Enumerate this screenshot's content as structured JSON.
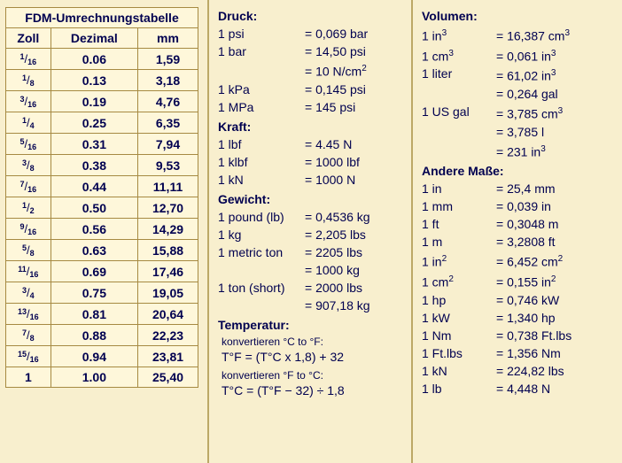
{
  "table": {
    "title": "FDM-Umrechnungstabelle",
    "headers": [
      "Zoll",
      "Dezimal",
      "mm"
    ],
    "rows": [
      {
        "num": "1",
        "den": "16",
        "dec": "0.06",
        "mm": "1,59"
      },
      {
        "num": "1",
        "den": "8",
        "dec": "0.13",
        "mm": "3,18"
      },
      {
        "num": "3",
        "den": "16",
        "dec": "0.19",
        "mm": "4,76"
      },
      {
        "num": "1",
        "den": "4",
        "dec": "0.25",
        "mm": "6,35"
      },
      {
        "num": "5",
        "den": "16",
        "dec": "0.31",
        "mm": "7,94"
      },
      {
        "num": "3",
        "den": "8",
        "dec": "0.38",
        "mm": "9,53"
      },
      {
        "num": "7",
        "den": "16",
        "dec": "0.44",
        "mm": "11,11"
      },
      {
        "num": "1",
        "den": "2",
        "dec": "0.50",
        "mm": "12,70"
      },
      {
        "num": "9",
        "den": "16",
        "dec": "0.56",
        "mm": "14,29"
      },
      {
        "num": "5",
        "den": "8",
        "dec": "0.63",
        "mm": "15,88"
      },
      {
        "num": "11",
        "den": "16",
        "dec": "0.69",
        "mm": "17,46"
      },
      {
        "num": "3",
        "den": "4",
        "dec": "0.75",
        "mm": "19,05"
      },
      {
        "num": "13",
        "den": "16",
        "dec": "0.81",
        "mm": "20,64"
      },
      {
        "num": "7",
        "den": "8",
        "dec": "0.88",
        "mm": "22,23"
      },
      {
        "num": "15",
        "den": "16",
        "dec": "0.94",
        "mm": "23,81"
      },
      {
        "whole": "1",
        "dec": "1.00",
        "mm": "25,40"
      }
    ]
  },
  "col2": {
    "druck": {
      "title": "Druck:",
      "rows": [
        {
          "l": "1 psi",
          "r": "= 0,069 bar"
        },
        {
          "l": "1 bar",
          "r": "= 14,50 psi"
        },
        {
          "l": "",
          "r": "= 10 N/cm²"
        },
        {
          "l": "1 kPa",
          "r": "= 0,145 psi"
        },
        {
          "l": "1 MPa",
          "r": "= 145 psi"
        }
      ]
    },
    "kraft": {
      "title": "Kraft:",
      "rows": [
        {
          "l": "1 lbf",
          "r": "= 4.45 N"
        },
        {
          "l": "1 klbf",
          "r": "= 1000 lbf"
        },
        {
          "l": "1 kN",
          "r": "= 1000 N"
        }
      ]
    },
    "gewicht": {
      "title": "Gewicht:",
      "rows": [
        {
          "l": "1 pound (lb)",
          "r": "= 0,4536 kg"
        },
        {
          "l": "1 kg",
          "r": "= 2,205 lbs"
        },
        {
          "l": "1 metric ton",
          "r": "= 2205 lbs"
        },
        {
          "l": "",
          "r": "= 1000 kg"
        },
        {
          "l": "1 ton (short)",
          "r": "= 2000 lbs"
        },
        {
          "l": "",
          "r": "= 907,18 kg"
        }
      ]
    },
    "temperatur": {
      "title": "Temperatur:",
      "conv1_label": "konvertieren  °C to °F:",
      "conv1_formula": "T°F = (T°C x 1,8) + 32",
      "conv2_label": "konvertieren  °F to °C:",
      "conv2_formula": "T°C = (T°F − 32) ÷ 1,8"
    }
  },
  "col3": {
    "volumen": {
      "title": "Volumen:",
      "rows": [
        {
          "l": "1 in³",
          "r": "= 16,387 cm³"
        },
        {
          "l": "1 cm³",
          "r": "= 0,061 in³"
        },
        {
          "l": "1 liter",
          "r": "= 61,02 in³"
        },
        {
          "l": "",
          "r": "= 0,264 gal"
        },
        {
          "l": "1 US gal",
          "r": "= 3,785 cm³"
        },
        {
          "l": "",
          "r": "= 3,785 l"
        },
        {
          "l": "",
          "r": "= 231 in³"
        }
      ]
    },
    "andere": {
      "title": "Andere Maße:",
      "rows": [
        {
          "l": "1 in",
          "r": "= 25,4 mm"
        },
        {
          "l": "1 mm",
          "r": "= 0,039 in"
        },
        {
          "l": "1 ft",
          "r": "= 0,3048 m"
        },
        {
          "l": "1 m",
          "r": "= 3,2808 ft"
        },
        {
          "l": "1 in²",
          "r": "= 6,452 cm²"
        },
        {
          "l": "1 cm²",
          "r": "= 0,155 in²"
        },
        {
          "l": "1 hp",
          "r": "= 0,746 kW"
        },
        {
          "l": "1 kW",
          "r": "= 1,340 hp"
        },
        {
          "l": "1 Nm",
          "r": "= 0,738 Ft.lbs"
        },
        {
          "l": "1 Ft.lbs",
          "r": "= 1,356 Nm"
        },
        {
          "l": "1 kN",
          "r": "= 224,82 lbs"
        },
        {
          "l": "1 lb",
          "r": "= 4,448 N"
        }
      ]
    }
  }
}
